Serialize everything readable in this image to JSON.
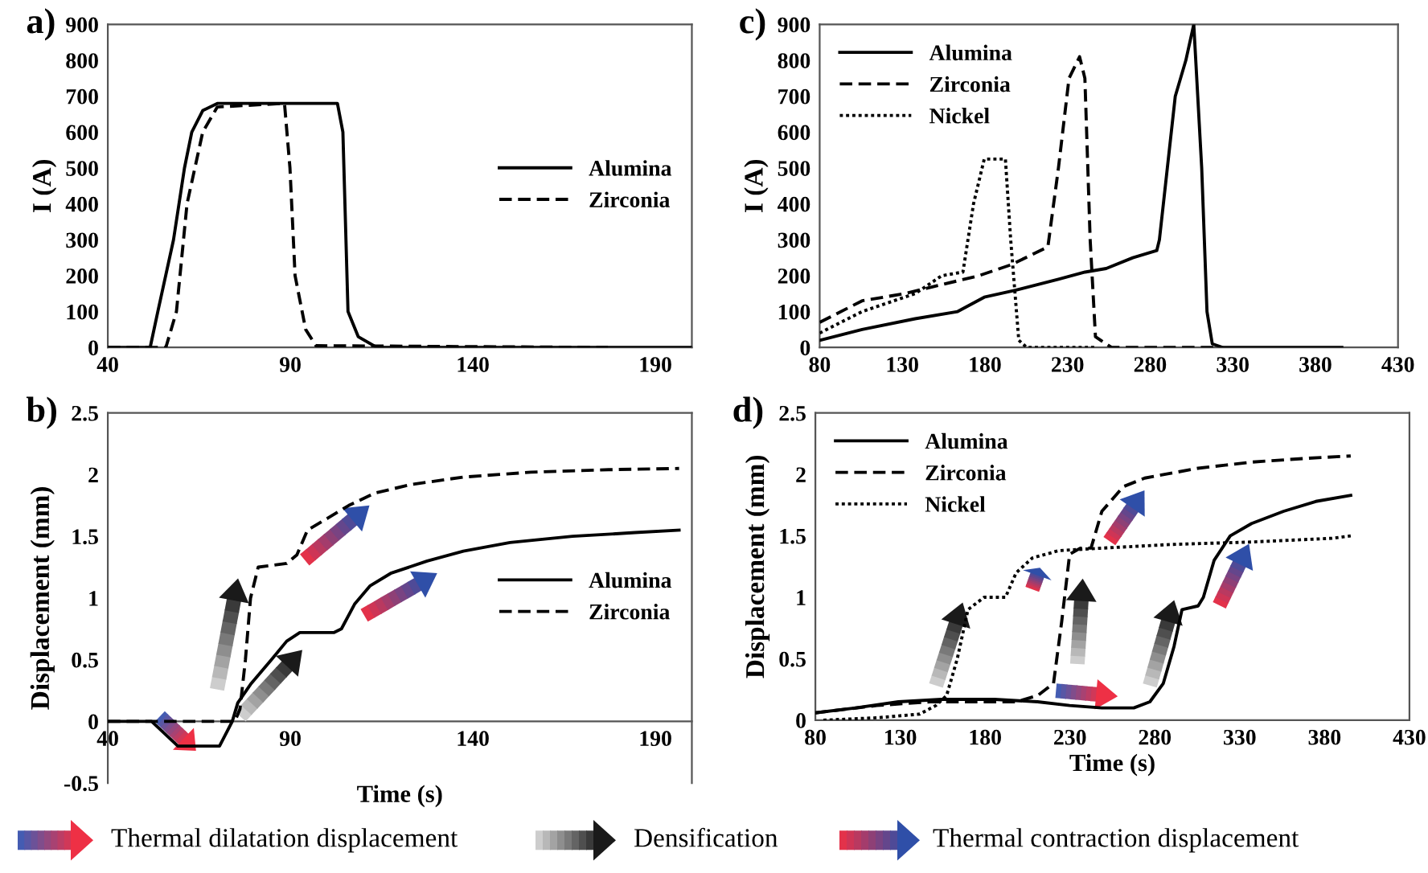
{
  "chart_data": [
    {
      "type": "line",
      "title": "a)",
      "ylabel": "I (A)",
      "xlim": [
        40,
        200
      ],
      "xticks": [
        40,
        90,
        140,
        190
      ],
      "ylim": [
        0,
        900
      ],
      "yticks": [
        0,
        100,
        200,
        300,
        400,
        500,
        600,
        700,
        800,
        900
      ],
      "legend": "center right",
      "grid": false,
      "series": [
        {
          "name": "Alumina",
          "color": "#000000",
          "line_style": "solid",
          "x": [
            40,
            51.6,
            53.7,
            58,
            61,
            63,
            66,
            70,
            102.9,
            104.4,
            105.8,
            108.6,
            113.7,
            200
          ],
          "values": [
            0,
            0,
            100,
            300,
            500,
            600,
            660,
            680,
            680,
            600,
            100,
            30,
            0,
            0
          ]
        },
        {
          "name": "Zirconia",
          "color": "#000000",
          "line_style": "dashed",
          "x": [
            40,
            55.9,
            58.8,
            61.7,
            66,
            70,
            88.4,
            89.9,
            91.3,
            94.2,
            97,
            177
          ],
          "values": [
            0,
            0,
            100,
            400,
            600,
            670,
            680,
            500,
            200,
            50,
            5,
            0
          ]
        }
      ]
    },
    {
      "type": "line",
      "title": "b)",
      "xlabel": "Time (s)",
      "ylabel": "Displacement (mm)",
      "xlim": [
        40,
        200
      ],
      "xticks": [
        40,
        90,
        140,
        190
      ],
      "ylim": [
        -0.5,
        2.5
      ],
      "yticks": [
        -0.5,
        0,
        0.5,
        1,
        1.5,
        2,
        2.5
      ],
      "legend": "center right",
      "grid": false,
      "series": [
        {
          "name": "Alumina",
          "color": "#000000",
          "line_style": "solid",
          "x": [
            40,
            52,
            59.2,
            70.6,
            74.1,
            75.6,
            79.1,
            84.8,
            89,
            92.6,
            101.9,
            104,
            107.6,
            111.9,
            117.5,
            127.5,
            137.4,
            150.2,
            167.3,
            184.4,
            196.5
          ],
          "values": [
            0,
            0,
            -0.2,
            -0.2,
            0,
            0.15,
            0.3,
            0.5,
            0.65,
            0.72,
            0.72,
            0.75,
            0.95,
            1.1,
            1.2,
            1.3,
            1.38,
            1.45,
            1.5,
            1.53,
            1.55
          ]
        },
        {
          "name": "Zirconia",
          "color": "#000000",
          "line_style": "dashed",
          "x": [
            40,
            74.8,
            76.2,
            77.7,
            79.1,
            81.2,
            89,
            91.8,
            94.7,
            100.4,
            106,
            113.1,
            123.1,
            137.4,
            155.9,
            177.2,
            196.5
          ],
          "values": [
            0,
            0,
            0.1,
            0.5,
            1.0,
            1.25,
            1.28,
            1.35,
            1.55,
            1.65,
            1.75,
            1.85,
            1.92,
            1.98,
            2.02,
            2.04,
            2.05
          ]
        }
      ]
    },
    {
      "type": "line",
      "title": "c)",
      "ylabel": "I (A)",
      "xlim": [
        80,
        430
      ],
      "xticks": [
        80,
        130,
        180,
        230,
        280,
        330,
        380,
        430
      ],
      "ylim": [
        0,
        900
      ],
      "yticks": [
        0,
        100,
        200,
        300,
        400,
        500,
        600,
        700,
        800,
        900
      ],
      "legend": "top left",
      "grid": false,
      "series": [
        {
          "name": "Alumina",
          "color": "#000000",
          "line_style": "solid",
          "x": [
            80,
            105.7,
            137.8,
            163.5,
            179.6,
            198.8,
            224.5,
            240.6,
            253.4,
            269.5,
            284,
            285.6,
            290.4,
            295.2,
            301.6,
            306.4,
            311.2,
            314.4,
            317.6,
            324,
            396
          ],
          "values": [
            20,
            50,
            80,
            100,
            140,
            160,
            190,
            210,
            220,
            250,
            270,
            300,
            500,
            700,
            800,
            900,
            500,
            100,
            10,
            0,
            0
          ]
        },
        {
          "name": "Zirconia",
          "color": "#000000",
          "line_style": "dashed",
          "x": [
            80,
            105.7,
            131.4,
            153.9,
            176.4,
            195.6,
            218.1,
            224.5,
            230.9,
            237.3,
            240.5,
            243.7,
            246.9,
            256.6,
            320.8
          ],
          "values": [
            70,
            130,
            150,
            175,
            200,
            230,
            280,
            500,
            750,
            810,
            750,
            300,
            30,
            0,
            0
          ]
        },
        {
          "name": "Nickel",
          "color": "#000000",
          "line_style": "dotted",
          "x": [
            80,
            105.7,
            137.8,
            153.9,
            166.7,
            173.1,
            179.6,
            192.4,
            195.6,
            200.5,
            205.3,
            247
          ],
          "values": [
            40,
            100,
            150,
            200,
            210,
            400,
            525,
            525,
            300,
            20,
            0,
            0
          ]
        }
      ]
    },
    {
      "type": "line",
      "title": "d)",
      "xlabel": "Time (s)",
      "ylabel": "Displacement (mm)",
      "xlim": [
        80,
        430
      ],
      "xticks": [
        80,
        130,
        180,
        230,
        280,
        330,
        380,
        430
      ],
      "ylim": [
        0,
        2.5
      ],
      "yticks": [
        0,
        0.5,
        1,
        1.5,
        2,
        2.5
      ],
      "legend": "top left",
      "grid": false,
      "series": [
        {
          "name": "Alumina",
          "color": "#000000",
          "line_style": "solid",
          "x": [
            80,
            103.7,
            128.9,
            154.1,
            185.6,
            210.9,
            229.8,
            248.8,
            267.6,
            277.1,
            285,
            291.3,
            296,
            305.5,
            308.6,
            314.9,
            324.4,
            337,
            355.9,
            374.8,
            395.4
          ],
          "values": [
            0.06,
            0.1,
            0.15,
            0.17,
            0.17,
            0.15,
            0.12,
            0.1,
            0.1,
            0.15,
            0.3,
            0.6,
            0.9,
            0.93,
            1.0,
            1.3,
            1.5,
            1.6,
            1.7,
            1.78,
            1.83
          ]
        },
        {
          "name": "Zirconia",
          "color": "#000000",
          "line_style": "dashed",
          "x": [
            80,
            116.3,
            147.8,
            198.3,
            210.9,
            220.3,
            225.1,
            229.8,
            236.1,
            242.4,
            248.8,
            261.4,
            274,
            305.5,
            337,
            368.6,
            395.4
          ],
          "values": [
            0.06,
            0.12,
            0.15,
            0.15,
            0.2,
            0.3,
            0.8,
            1.35,
            1.4,
            1.4,
            1.7,
            1.9,
            1.97,
            2.05,
            2.1,
            2.13,
            2.15
          ]
        },
        {
          "name": "Nickel",
          "color": "#000000",
          "line_style": "dotted",
          "x": [
            84.7,
            116.3,
            141.5,
            151,
            157.3,
            163.6,
            169.9,
            179.4,
            192,
            198.3,
            207.8,
            223.5,
            248.8,
            289.7,
            337,
            384.3,
            395.4
          ],
          "values": [
            0,
            0.02,
            0.05,
            0.12,
            0.2,
            0.5,
            0.9,
            1.0,
            1.0,
            1.2,
            1.32,
            1.38,
            1.4,
            1.43,
            1.45,
            1.48,
            1.5
          ]
        }
      ]
    },
    {
      "type": "other",
      "annotations": [
        "Thermal dilatation displacement",
        "Densification",
        "Thermal contraction displacement"
      ]
    }
  ]
}
